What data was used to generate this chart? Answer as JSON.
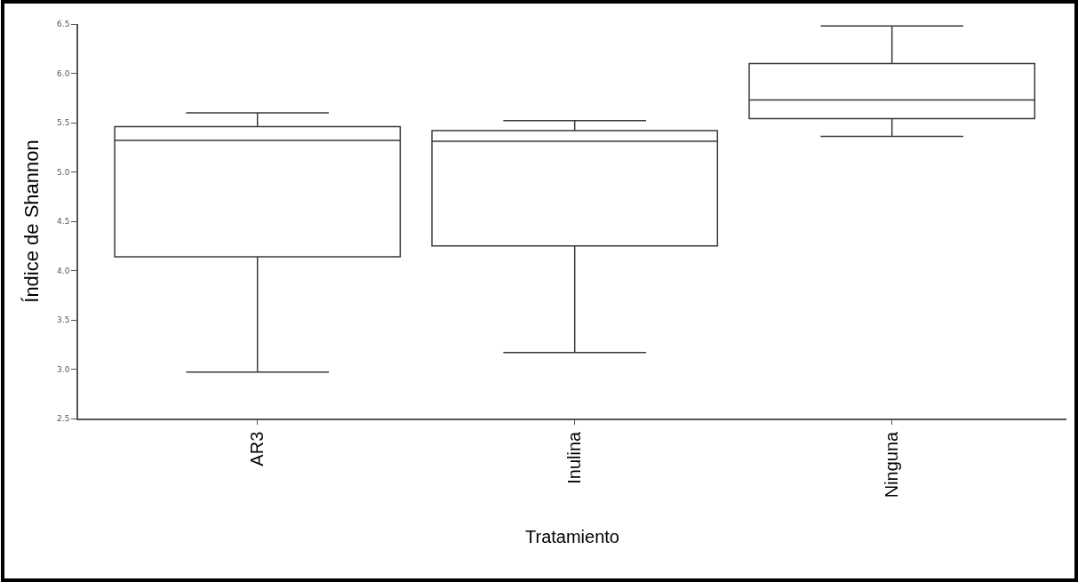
{
  "chart_data": {
    "type": "box",
    "xlabel": "Tratamiento",
    "ylabel": "Índice de Shannon",
    "categories": [
      "AR3",
      "Inulina",
      "Ninguna"
    ],
    "color": "#3a3a3a",
    "boxes": [
      {
        "low": 2.97,
        "q1": 4.14,
        "median": 5.32,
        "q3": 5.46,
        "high": 5.6
      },
      {
        "low": 3.17,
        "q1": 4.25,
        "median": 5.31,
        "q3": 5.42,
        "high": 5.52
      },
      {
        "low": 5.36,
        "q1": 5.54,
        "median": 5.73,
        "q3": 6.1,
        "high": 6.48
      }
    ],
    "ylim": [
      2.5,
      6.5
    ],
    "yticks": [
      2.5,
      {
        "value": 3,
        "label": "3.0"
      },
      3.5,
      {
        "value": 4,
        "label": "4.0"
      },
      4.5,
      {
        "value": 5,
        "label": "5.0"
      },
      5.5,
      {
        "value": 6,
        "label": "6.0"
      },
      6.5
    ]
  }
}
